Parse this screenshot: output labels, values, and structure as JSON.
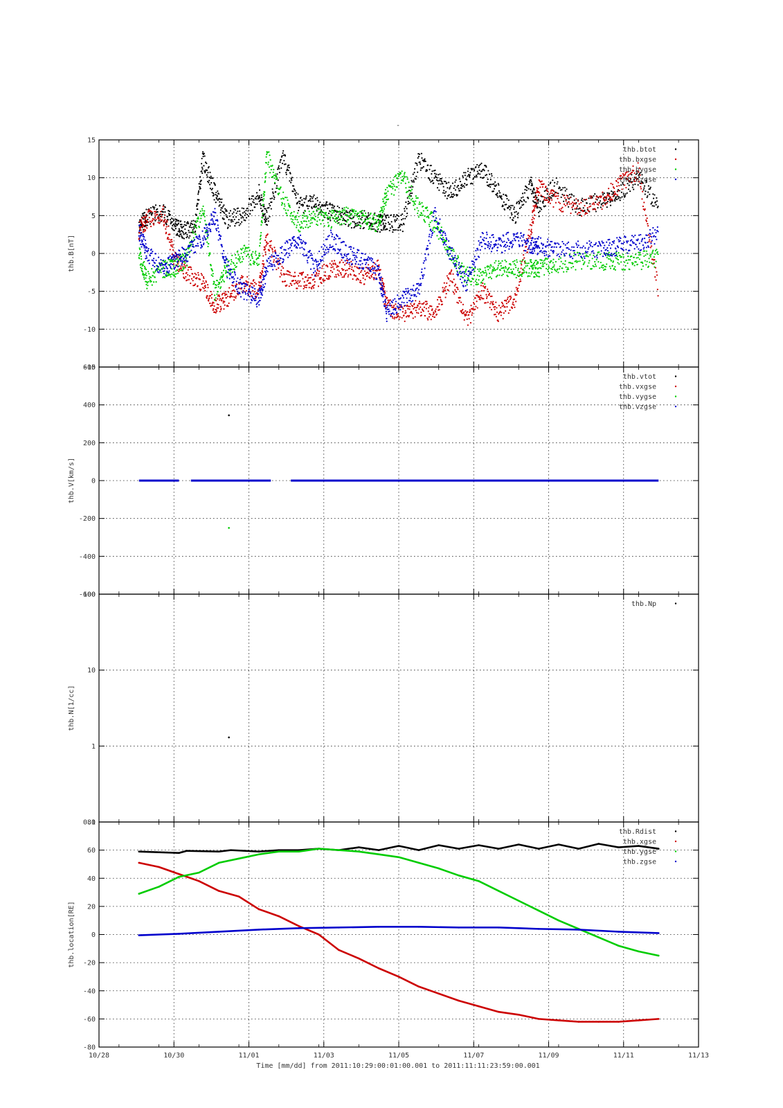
{
  "figure": {
    "title": "-",
    "xlabel": "Time [mm/dd]  from 2011:10:29:00:01:00.001  to  2011:11:11:23:59:00.001"
  },
  "chart_data": [
    {
      "type": "scatter",
      "ylabel": "thb.B[nT]",
      "ylim": [
        -15,
        15
      ],
      "yticks": [
        -15,
        -10,
        -5,
        0,
        5,
        10,
        15
      ],
      "xlim": [
        0,
        15
      ],
      "xticks": [
        "10/28",
        "10/30",
        "11/01",
        "11/03",
        "11/05",
        "11/07",
        "11/09",
        "11/11",
        "11/13"
      ],
      "grid": true,
      "legend": "top-right",
      "series": [
        {
          "name": "thb.btot",
          "color": "#000000",
          "x": [
            1,
            1.2,
            1.6,
            1.9,
            2.1,
            2.4,
            2.6,
            2.9,
            3.2,
            3.6,
            4,
            4.2,
            4.6,
            5,
            5.4,
            5.8,
            6.2,
            6.6,
            7,
            7.2,
            7.6,
            8,
            8.4,
            8.8,
            9.2,
            9.6,
            10,
            10.4,
            10.8,
            11,
            11.4,
            12,
            12.6,
            13,
            13.5,
            14
          ],
          "y": [
            3.5,
            4.8,
            5.5,
            3.5,
            3,
            3.2,
            12.5,
            8,
            4.5,
            5,
            8,
            4.5,
            13,
            6.5,
            6.5,
            5.5,
            4.5,
            4.5,
            4,
            4,
            4,
            12.5,
            10,
            8,
            10,
            11,
            8,
            5,
            9,
            6,
            9,
            6,
            7,
            8,
            10,
            6
          ]
        },
        {
          "name": "thb.bxgse",
          "color": "#cc0000",
          "x": [
            1,
            1.2,
            1.6,
            1.9,
            2.2,
            2.6,
            2.9,
            3.2,
            3.6,
            4,
            4.2,
            4.6,
            5,
            5.4,
            5.8,
            6.2,
            6.6,
            7,
            7.2,
            7.6,
            8,
            8.4,
            8.8,
            9.2,
            9.6,
            10,
            10.4,
            10.8,
            11,
            11.4,
            12,
            12.6,
            13,
            13.5,
            14
          ],
          "y": [
            3,
            4.5,
            5.2,
            -1,
            -2.5,
            -4,
            -7,
            -6,
            -4,
            -5,
            2,
            -3,
            -3.5,
            -3.5,
            -2,
            -2,
            -3,
            -2,
            -7,
            -8,
            -7,
            -8,
            -3,
            -9,
            -5,
            -8,
            -6,
            3,
            9,
            7,
            6,
            7,
            9,
            11,
            -5
          ]
        },
        {
          "name": "thb.bygse",
          "color": "#00cc00",
          "x": [
            1,
            1.2,
            1.6,
            1.9,
            2.2,
            2.6,
            2.9,
            3.2,
            3.6,
            4,
            4.2,
            4.6,
            5,
            5.4,
            5.8,
            6.2,
            6.6,
            7,
            7.2,
            7.6,
            8,
            8.4,
            8.8,
            9.2,
            9.6,
            10,
            10.4,
            10.8,
            11,
            11.4,
            12,
            12.6,
            13,
            13.5,
            14
          ],
          "y": [
            0,
            -3.5,
            -2,
            -2,
            -0.5,
            6,
            -5,
            -2,
            0,
            -1,
            13,
            7,
            4,
            5,
            4.5,
            5,
            4.5,
            4,
            8,
            10,
            6,
            4,
            0,
            -3,
            -3,
            -2,
            -2,
            -2,
            -2,
            -1.5,
            -1,
            -1,
            -1,
            -1,
            -0.5
          ]
        },
        {
          "name": "thb.bzgse",
          "color": "#0000cc",
          "x": [
            1,
            1.2,
            1.6,
            1.9,
            2.2,
            2.6,
            2.9,
            3.2,
            3.6,
            4,
            4.2,
            4.6,
            5,
            5.4,
            5.8,
            6.2,
            6.6,
            7,
            7.2,
            7.6,
            8,
            8.4,
            8.8,
            9.2,
            9.6,
            10,
            10.4,
            10.8,
            11,
            11.4,
            12,
            12.6,
            13,
            13.5,
            14
          ],
          "y": [
            3,
            0,
            -2,
            -1,
            0,
            2,
            5,
            -2,
            -5,
            -6,
            -2,
            0,
            2,
            -2,
            2,
            0,
            -1,
            -2.5,
            -8,
            -6,
            -5,
            5,
            0,
            -4,
            2,
            1,
            2,
            1,
            1,
            0.5,
            0.5,
            0.5,
            1,
            1.5,
            2.5
          ]
        }
      ]
    },
    {
      "type": "scatter",
      "ylabel": "thb.V[km/s]",
      "ylim": [
        -600,
        600
      ],
      "yticks": [
        -600,
        -400,
        -200,
        0,
        200,
        400,
        600
      ],
      "xlim": [
        0,
        15
      ],
      "grid": true,
      "legend": "top-right",
      "series": [
        {
          "name": "thb.vtot",
          "color": "#000000",
          "x": [
            3.25
          ],
          "y": [
            345
          ]
        },
        {
          "name": "thb.vxgse",
          "color": "#cc0000",
          "x": [],
          "y": []
        },
        {
          "name": "thb.vygse",
          "color": "#00cc00",
          "x": [
            3.25
          ],
          "y": [
            -250
          ]
        },
        {
          "name": "thb.vzgse",
          "color": "#0000cc",
          "x": [
            1,
            2,
            2.3,
            4.3,
            4.8,
            14
          ],
          "y": [
            0,
            0,
            0,
            0,
            0,
            0
          ]
        }
      ]
    },
    {
      "type": "scatter",
      "ylabel": "thb.N[1/cc]",
      "ylim": [
        0.1,
        100
      ],
      "log": true,
      "yticks": [
        0.1,
        1,
        10,
        100
      ],
      "xlim": [
        0,
        15
      ],
      "grid": true,
      "legend": "top-right",
      "series": [
        {
          "name": "thb.Np",
          "color": "#000000",
          "x": [
            3.25
          ],
          "y": [
            1.3
          ]
        }
      ]
    },
    {
      "type": "line",
      "ylabel": "thb.location[RE]",
      "ylim": [
        -80,
        80
      ],
      "yticks": [
        -80,
        -60,
        -40,
        -20,
        0,
        20,
        40,
        60,
        80
      ],
      "xlim": [
        0,
        15
      ],
      "grid": true,
      "legend": "top-right",
      "series": [
        {
          "name": "thb.Rdist",
          "color": "#000000",
          "x": [
            1,
            2,
            2.2,
            3,
            3.3,
            4,
            4.5,
            5,
            5.5,
            6,
            6.5,
            7,
            7.5,
            8,
            8.5,
            9,
            9.5,
            10,
            10.5,
            11,
            11.5,
            12,
            12.5,
            13,
            13.5,
            14
          ],
          "y": [
            59,
            58,
            59.5,
            59,
            60,
            59,
            60,
            60,
            61,
            60,
            62,
            60,
            63,
            60,
            63.5,
            61,
            63.5,
            61,
            64,
            61,
            64,
            61,
            64.5,
            62,
            63,
            61
          ]
        },
        {
          "name": "thb.xgse",
          "color": "#cc0000",
          "x": [
            1,
            1.5,
            2,
            2.5,
            3,
            3.5,
            4,
            4.5,
            5,
            5.5,
            6,
            6.5,
            7,
            7.5,
            8,
            8.5,
            9,
            9.5,
            10,
            10.5,
            11,
            11.5,
            12,
            12.5,
            13,
            13.5,
            14
          ],
          "y": [
            51,
            48,
            43,
            38,
            31,
            27,
            18,
            13,
            6,
            0,
            -11,
            -17,
            -24,
            -30,
            -37,
            -42,
            -47,
            -51,
            -55,
            -57,
            -60,
            -61,
            -62,
            -62,
            -62,
            -61,
            -60
          ]
        },
        {
          "name": "thb.ygse",
          "color": "#00cc00",
          "x": [
            1,
            1.5,
            2,
            2.5,
            3,
            3.5,
            4,
            4.5,
            5,
            5.5,
            6,
            6.5,
            7,
            7.5,
            8,
            8.5,
            9,
            9.5,
            10,
            10.5,
            11,
            11.5,
            12,
            12.5,
            13,
            13.5,
            14
          ],
          "y": [
            29,
            34,
            41,
            44,
            51,
            54,
            57,
            59,
            59,
            61,
            60,
            59,
            57,
            55,
            51,
            47,
            42,
            38,
            31,
            24,
            17,
            10,
            4,
            -2,
            -8,
            -12,
            -15
          ]
        },
        {
          "name": "thb.zgse",
          "color": "#0000cc",
          "x": [
            1,
            2,
            3,
            4,
            5,
            6,
            7,
            8,
            9,
            10,
            11,
            12,
            13,
            14
          ],
          "y": [
            -0.5,
            0.5,
            2,
            3.5,
            4.5,
            5,
            5.5,
            5.5,
            5,
            5,
            4,
            3.5,
            2,
            1
          ]
        }
      ]
    }
  ]
}
